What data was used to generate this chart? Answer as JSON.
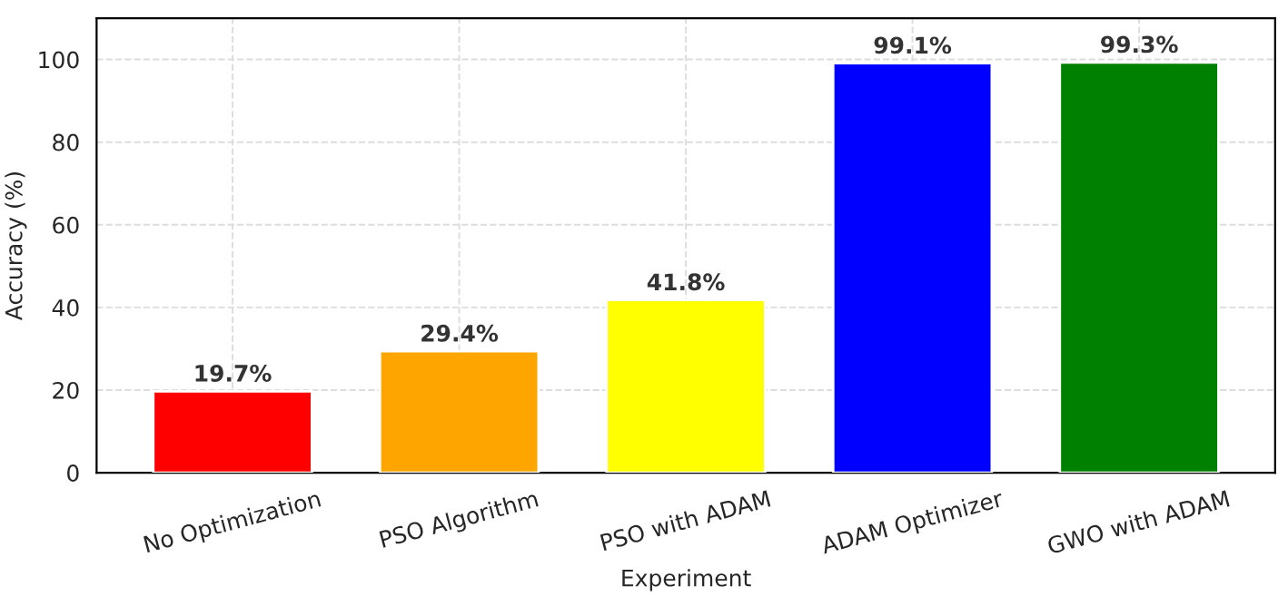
{
  "chart_data": {
    "type": "bar",
    "categories": [
      "No Optimization",
      "PSO Algorithm",
      "PSO with ADAM",
      "ADAM Optimizer",
      "GWO with ADAM"
    ],
    "values": [
      19.7,
      29.4,
      41.8,
      99.1,
      99.3
    ],
    "value_labels": [
      "19.7%",
      "29.4%",
      "41.8%",
      "99.1%",
      "99.3%"
    ],
    "colors": [
      "#ff0000",
      "#ffa500",
      "#ffff00",
      "#0000ff",
      "#008000"
    ],
    "xlabel": "Experiment",
    "ylabel": "Accuracy (%)",
    "ylim": [
      0,
      110
    ],
    "yticks": [
      0,
      20,
      40,
      60,
      80,
      100
    ],
    "grid": true
  }
}
